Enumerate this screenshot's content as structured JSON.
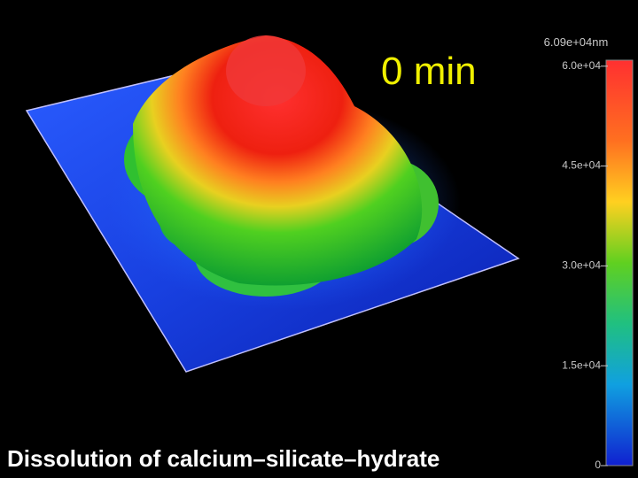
{
  "time_label": "0 min",
  "caption": "Dissolution of calcium–silicate–hydrate",
  "colorbar": {
    "max_label": "6.09e+04nm",
    "lim": [
      0,
      60900
    ],
    "ticks": [
      {
        "value": 60000,
        "label": "6.0e+04"
      },
      {
        "value": 45000,
        "label": "4.5e+04"
      },
      {
        "value": 30000,
        "label": "3.0e+04"
      },
      {
        "value": 15000,
        "label": "1.5e+04"
      },
      0
    ]
  }
}
